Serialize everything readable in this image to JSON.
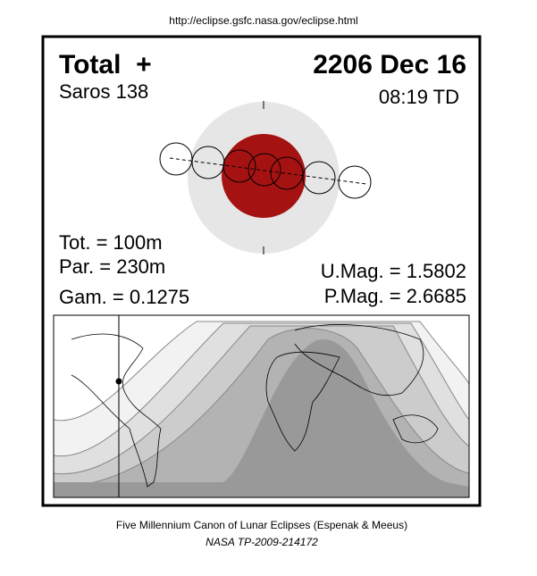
{
  "header": {
    "url": "http://eclipse.gsfc.nasa.gov/eclipse.html"
  },
  "eclipse": {
    "type": "Total  +",
    "date": "2206 Dec 16",
    "saros": "Saros 138",
    "time": "08:19 TD",
    "tot": "Tot. = 100m",
    "par": "Par. = 230m",
    "gam": "Gam. = 0.1275",
    "umag": "U.Mag. = 1.5802",
    "pmag": "P.Mag. = 2.6685"
  },
  "footer": {
    "line1": "Five Millennium Canon of Lunar Eclipses (Espenak & Meeus)",
    "line2": "NASA TP-2009-214172"
  }
}
